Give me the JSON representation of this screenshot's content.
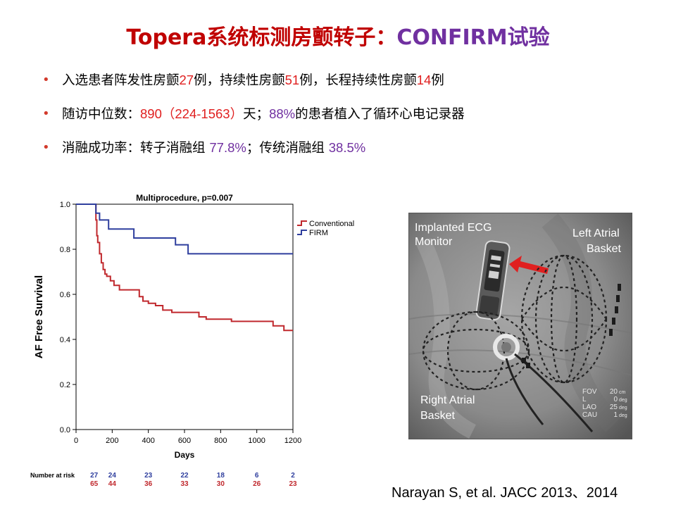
{
  "title": {
    "part1": "Topera系统标测房颤转子：",
    "part2": "CONFIRM试验",
    "color1": "#c00000",
    "color2": "#7030a0"
  },
  "bullets": [
    {
      "segments": [
        {
          "text": "入选患者阵发性房颤",
          "style": "plain"
        },
        {
          "text": "27",
          "style": "red"
        },
        {
          "text": "例，持续性房颤",
          "style": "plain"
        },
        {
          "text": "51",
          "style": "red"
        },
        {
          "text": "例，长程持续性房颤",
          "style": "plain"
        },
        {
          "text": "14",
          "style": "red"
        },
        {
          "text": "例",
          "style": "plain"
        }
      ]
    },
    {
      "segments": [
        {
          "text": "随访中位数：",
          "style": "plain"
        },
        {
          "text": "890（224-1563）",
          "style": "red"
        },
        {
          "text": "天；",
          "style": "plain"
        },
        {
          "text": "88%",
          "style": "purple"
        },
        {
          "text": "的患者植入了循环心电记录器",
          "style": "plain"
        }
      ]
    },
    {
      "segments": [
        {
          "text": "消融成功率：转子消融组 ",
          "style": "plain"
        },
        {
          "text": "77.8%",
          "style": "purple"
        },
        {
          "text": "；传统消融组 ",
          "style": "plain"
        },
        {
          "text": "38.5%",
          "style": "purple"
        }
      ]
    }
  ],
  "chart_data": {
    "type": "line",
    "subtype": "kaplan-meier-step",
    "title": "Multiprocedure, p=0.007",
    "xlabel": "Days",
    "ylabel": "AF Free Survival",
    "xlim": [
      0,
      1200
    ],
    "ylim": [
      0,
      1.0
    ],
    "xticks": [
      0,
      200,
      400,
      600,
      800,
      1000,
      1200
    ],
    "yticks": [
      0.0,
      0.2,
      0.4,
      0.6,
      0.8,
      1.0
    ],
    "ytick_labels": [
      "0.0",
      "0.2",
      "0.4",
      "0.6",
      "0.8",
      "1.0"
    ],
    "grid": false,
    "legend_position": "top-right",
    "series": [
      {
        "name": "Conventional",
        "color": "#c0282d",
        "points": [
          [
            0,
            1.0
          ],
          [
            110,
            1.0
          ],
          [
            110,
            0.93
          ],
          [
            115,
            0.93
          ],
          [
            115,
            0.86
          ],
          [
            120,
            0.86
          ],
          [
            120,
            0.83
          ],
          [
            130,
            0.83
          ],
          [
            130,
            0.78
          ],
          [
            140,
            0.78
          ],
          [
            140,
            0.74
          ],
          [
            150,
            0.74
          ],
          [
            150,
            0.71
          ],
          [
            160,
            0.71
          ],
          [
            160,
            0.69
          ],
          [
            170,
            0.69
          ],
          [
            170,
            0.68
          ],
          [
            190,
            0.68
          ],
          [
            190,
            0.66
          ],
          [
            210,
            0.66
          ],
          [
            210,
            0.64
          ],
          [
            240,
            0.64
          ],
          [
            240,
            0.62
          ],
          [
            350,
            0.62
          ],
          [
            350,
            0.59
          ],
          [
            370,
            0.59
          ],
          [
            370,
            0.57
          ],
          [
            400,
            0.57
          ],
          [
            400,
            0.56
          ],
          [
            440,
            0.56
          ],
          [
            440,
            0.55
          ],
          [
            480,
            0.55
          ],
          [
            480,
            0.53
          ],
          [
            530,
            0.53
          ],
          [
            530,
            0.52
          ],
          [
            680,
            0.52
          ],
          [
            680,
            0.5
          ],
          [
            720,
            0.5
          ],
          [
            720,
            0.49
          ],
          [
            860,
            0.49
          ],
          [
            860,
            0.48
          ],
          [
            1090,
            0.48
          ],
          [
            1090,
            0.46
          ],
          [
            1150,
            0.46
          ],
          [
            1150,
            0.44
          ],
          [
            1200,
            0.44
          ]
        ]
      },
      {
        "name": "FIRM",
        "color": "#2f3f9e",
        "points": [
          [
            0,
            1.0
          ],
          [
            110,
            1.0
          ],
          [
            110,
            0.96
          ],
          [
            130,
            0.96
          ],
          [
            130,
            0.93
          ],
          [
            180,
            0.93
          ],
          [
            180,
            0.89
          ],
          [
            320,
            0.89
          ],
          [
            320,
            0.85
          ],
          [
            550,
            0.85
          ],
          [
            550,
            0.82
          ],
          [
            620,
            0.82
          ],
          [
            620,
            0.78
          ],
          [
            1200,
            0.78
          ]
        ]
      }
    ],
    "risk_table": {
      "label": "Number at risk",
      "x": [
        100,
        200,
        400,
        600,
        800,
        1000,
        1200
      ],
      "rows": [
        {
          "series": "FIRM",
          "color": "#2f3f9e",
          "values": [
            "27",
            "24",
            "23",
            "22",
            "18",
            "6",
            "2"
          ]
        },
        {
          "series": "Conventional",
          "color": "#c0282d",
          "values": [
            "65",
            "44",
            "36",
            "33",
            "30",
            "26",
            "23"
          ]
        }
      ]
    }
  },
  "image_labels": {
    "ecg_monitor": [
      "Implanted ECG",
      "Monitor"
    ],
    "left_basket": [
      "Left Atrial",
      "Basket"
    ],
    "right_basket": [
      "Right Atrial",
      "Basket"
    ],
    "fov": [
      {
        "key": "FOV",
        "val": "20",
        "unit": "cm"
      },
      {
        "key": "L",
        "val": "0",
        "unit": "deg"
      },
      {
        "key": "LAO",
        "val": "25",
        "unit": "deg"
      },
      {
        "key": "CAU",
        "val": "1",
        "unit": "deg"
      }
    ]
  },
  "citation": "Narayan S, et al. JACC 2013、2014"
}
